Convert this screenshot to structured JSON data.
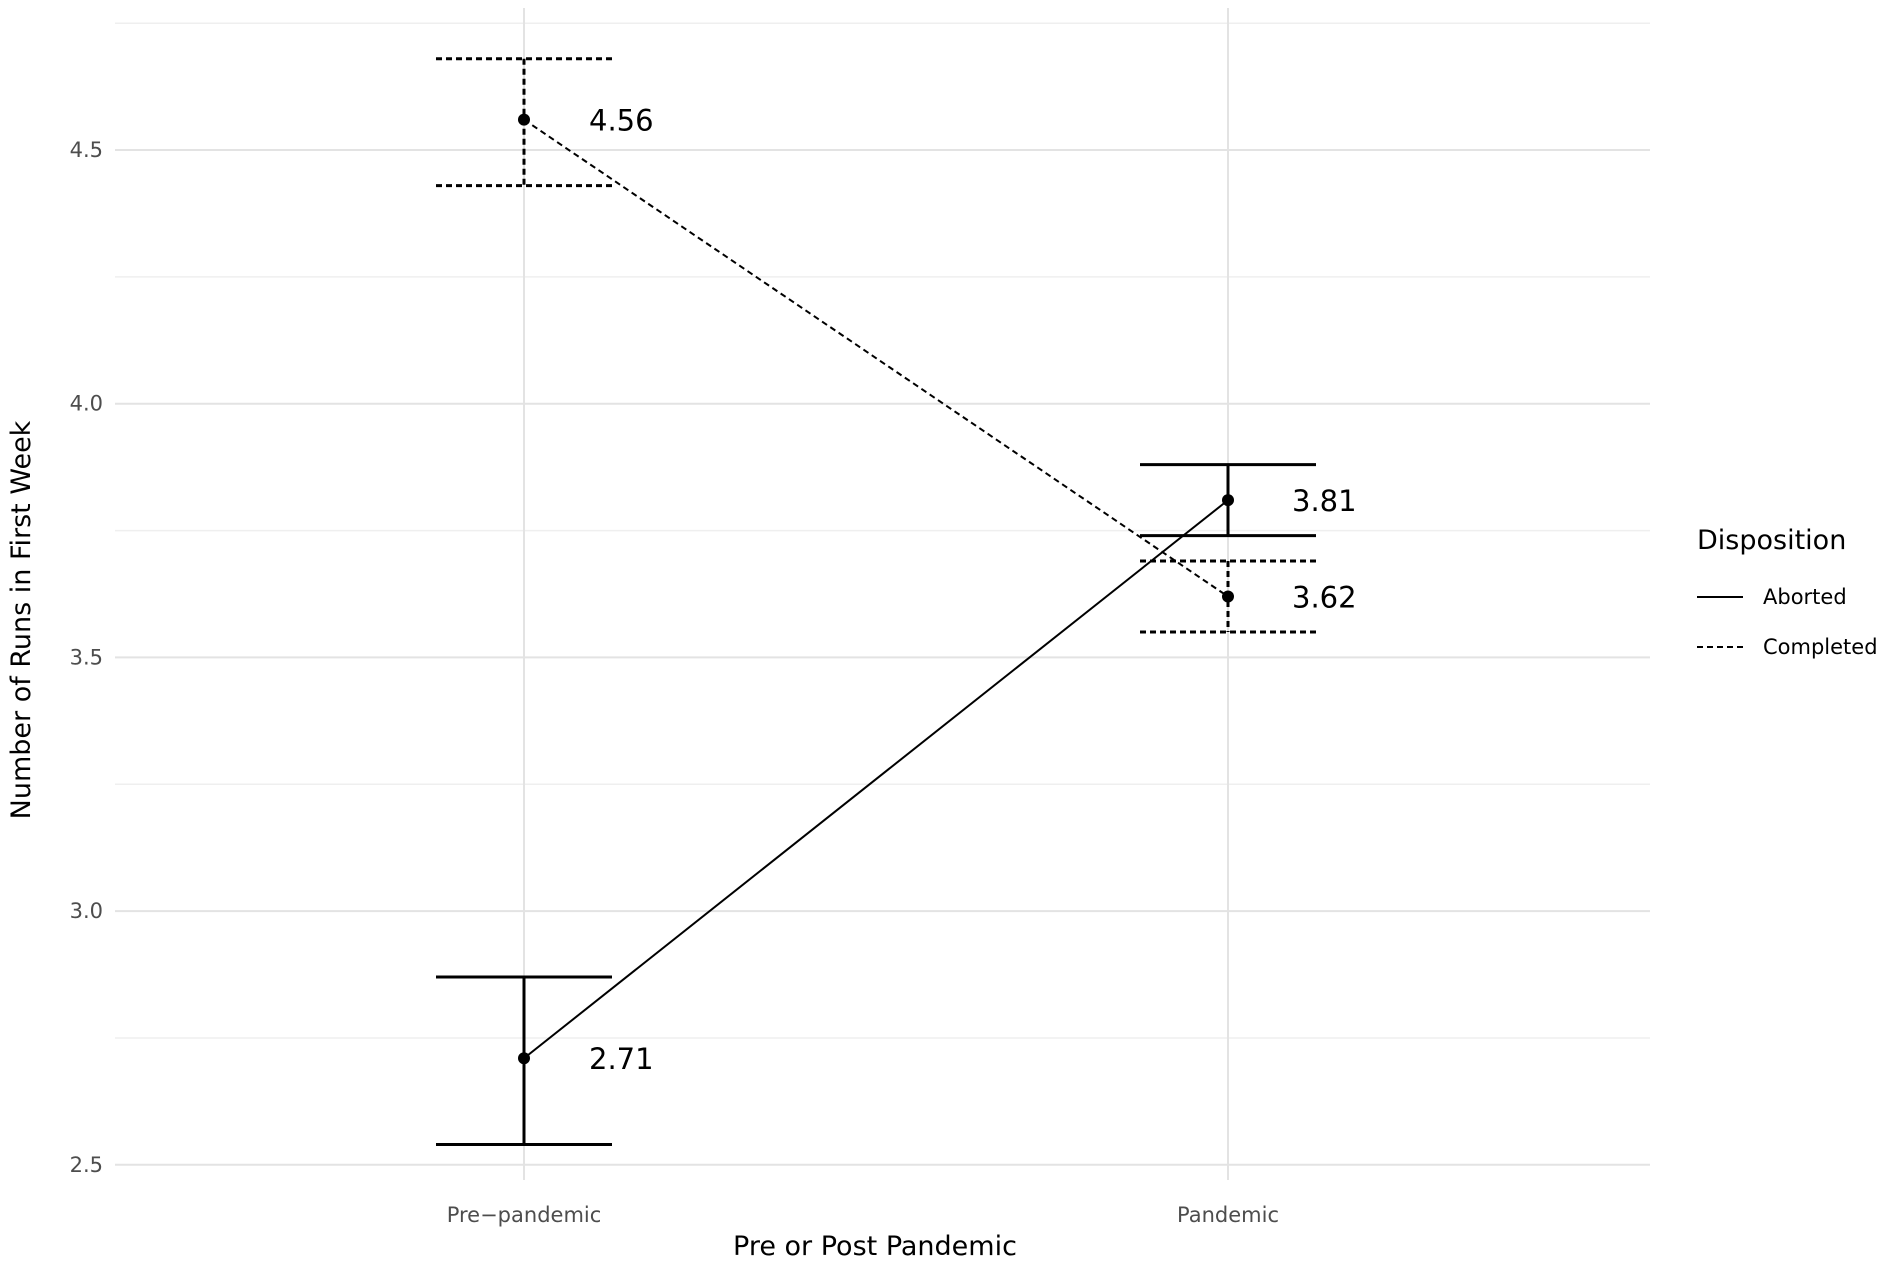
{
  "chart_data": {
    "type": "line",
    "title": "",
    "xlabel": "Pre or Post Pandemic",
    "ylabel": "Number of Runs in First Week",
    "categories": [
      "Pre−pandemic",
      "Pandemic"
    ],
    "ylim": [
      2.47,
      4.78
    ],
    "yticks": [
      "2.5",
      "3.0",
      "3.5",
      "4.0",
      "4.5"
    ],
    "grid": true,
    "legend": {
      "title": "Disposition",
      "position": "right"
    },
    "series": [
      {
        "name": "Aborted",
        "linetype": "solid",
        "values": [
          2.71,
          3.81
        ],
        "labels": [
          "2.71",
          "3.81"
        ],
        "lower": [
          2.54,
          3.74
        ],
        "upper": [
          2.87,
          3.88
        ]
      },
      {
        "name": "Completed",
        "linetype": "dashed",
        "values": [
          4.56,
          3.62
        ],
        "labels": [
          "4.56",
          "3.62"
        ],
        "lower": [
          4.43,
          3.55
        ],
        "upper": [
          4.68,
          3.69
        ]
      }
    ]
  }
}
